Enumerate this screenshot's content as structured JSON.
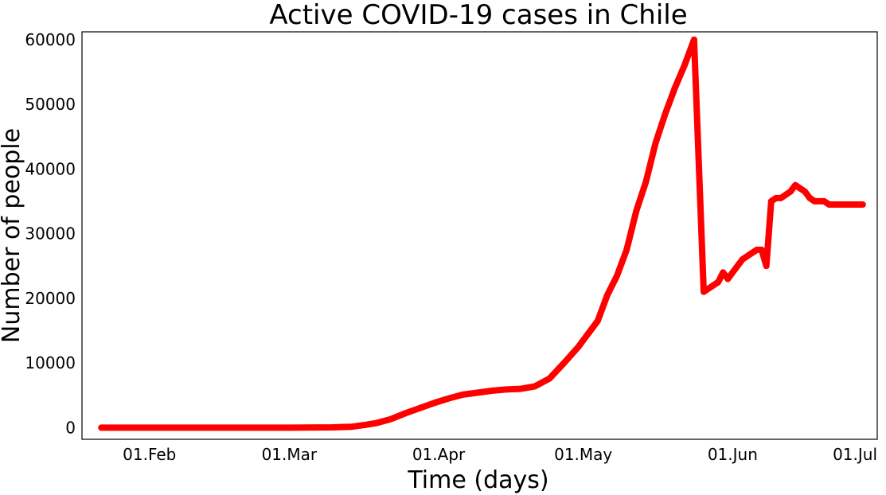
{
  "chart_data": {
    "type": "line",
    "title": "Active COVID-19 cases in Chile",
    "xlabel": "Time (days)",
    "ylabel": "Number of people",
    "x_ticks": [
      "2020-02-01",
      "2020-03-01",
      "2020-04-01",
      "2020-05-01",
      "2020-06-01",
      "2020-07-01"
    ],
    "x_tick_labels": [
      "01.Feb",
      "01.Mar",
      "01.Apr",
      "01.May",
      "01.Jun",
      "01.Jul"
    ],
    "y_ticks": [
      0,
      10000,
      20000,
      30000,
      40000,
      50000,
      60000
    ],
    "y_tick_labels": [
      "0",
      "10000",
      "20000",
      "30000",
      "40000",
      "50000",
      "60000"
    ],
    "xlim": [
      "2020-01-18",
      "2020-07-01"
    ],
    "ylim": [
      -1800,
      61200
    ],
    "grid": false,
    "color": "#ff0000",
    "series": [
      {
        "x": [
          "2020-01-22",
          "2020-02-01",
          "2020-02-15",
          "2020-03-01",
          "2020-03-10",
          "2020-03-14",
          "2020-03-17",
          "2020-03-19",
          "2020-03-22",
          "2020-03-25",
          "2020-03-28",
          "2020-03-31",
          "2020-04-03",
          "2020-04-06",
          "2020-04-09",
          "2020-04-12",
          "2020-04-15",
          "2020-04-18",
          "2020-04-21",
          "2020-04-24",
          "2020-04-27",
          "2020-04-30",
          "2020-05-02",
          "2020-05-04",
          "2020-05-06",
          "2020-05-08",
          "2020-05-10",
          "2020-05-12",
          "2020-05-14",
          "2020-05-16",
          "2020-05-18",
          "2020-05-20",
          "2020-05-22",
          "2020-05-24",
          "2020-05-26",
          "2020-05-27",
          "2020-05-28",
          "2020-05-29",
          "2020-05-30",
          "2020-05-31",
          "2020-06-01",
          "2020-06-02",
          "2020-06-03",
          "2020-06-04",
          "2020-06-05",
          "2020-06-06",
          "2020-06-07",
          "2020-06-08",
          "2020-06-09",
          "2020-06-10",
          "2020-06-11",
          "2020-06-12",
          "2020-06-13",
          "2020-06-14",
          "2020-06-15",
          "2020-06-16",
          "2020-06-17",
          "2020-06-18",
          "2020-06-19",
          "2020-06-20",
          "2020-06-21",
          "2020-06-22",
          "2020-06-23",
          "2020-06-24",
          "2020-06-25",
          "2020-06-26",
          "2020-06-27",
          "2020-06-28"
        ],
        "values": [
          0,
          0,
          0,
          0,
          50,
          150,
          450,
          700,
          1300,
          2200,
          3000,
          3800,
          4500,
          5100,
          5400,
          5700,
          5900,
          6000,
          6400,
          7600,
          10000,
          12500,
          14500,
          16500,
          20500,
          23500,
          27500,
          33500,
          38000,
          44000,
          48500,
          52500,
          56000,
          60000,
          21000,
          21500,
          22000,
          22500,
          24000,
          23000,
          24000,
          25000,
          26000,
          26500,
          27000,
          27500,
          27500,
          25000,
          35000,
          35500,
          35500,
          36000,
          36500,
          37500,
          37000,
          36500,
          35500,
          35000,
          35000,
          35000,
          34500,
          34500,
          34500,
          34500,
          34500,
          34500,
          34500,
          34500
        ]
      }
    ]
  }
}
